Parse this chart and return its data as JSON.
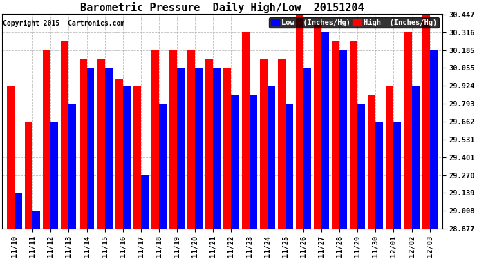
{
  "title": "Barometric Pressure  Daily High/Low  20151204",
  "copyright": "Copyright 2015  Cartronics.com",
  "categories": [
    "11/10",
    "11/11",
    "11/12",
    "11/13",
    "11/14",
    "11/15",
    "11/16",
    "11/17",
    "11/18",
    "11/19",
    "11/20",
    "11/21",
    "11/22",
    "11/23",
    "11/24",
    "11/25",
    "11/26",
    "11/27",
    "11/28",
    "11/29",
    "11/30",
    "12/01",
    "12/02",
    "12/03"
  ],
  "low_values": [
    29.139,
    29.008,
    29.662,
    29.793,
    30.055,
    30.055,
    29.924,
    29.27,
    29.793,
    30.055,
    30.055,
    30.055,
    29.862,
    29.862,
    29.924,
    29.793,
    30.055,
    30.316,
    30.185,
    29.793,
    29.662,
    29.662,
    29.924,
    30.185
  ],
  "high_values": [
    29.924,
    29.662,
    30.185,
    30.25,
    30.12,
    30.12,
    29.975,
    29.924,
    30.185,
    30.185,
    30.185,
    30.12,
    30.055,
    30.316,
    30.12,
    30.12,
    30.447,
    30.38,
    30.25,
    30.25,
    29.862,
    29.924,
    30.316,
    30.447
  ],
  "ylim_min": 28.877,
  "ylim_max": 30.447,
  "yticks": [
    28.877,
    29.008,
    29.139,
    29.27,
    29.401,
    29.531,
    29.662,
    29.793,
    29.924,
    30.055,
    30.185,
    30.316,
    30.447
  ],
  "low_color": "#0000ff",
  "high_color": "#ff0000",
  "bg_color": "#ffffff",
  "grid_color": "#aaaaaa",
  "title_fontsize": 11,
  "label_fontsize": 7.5,
  "copyright_fontsize": 7,
  "bar_width": 0.42
}
